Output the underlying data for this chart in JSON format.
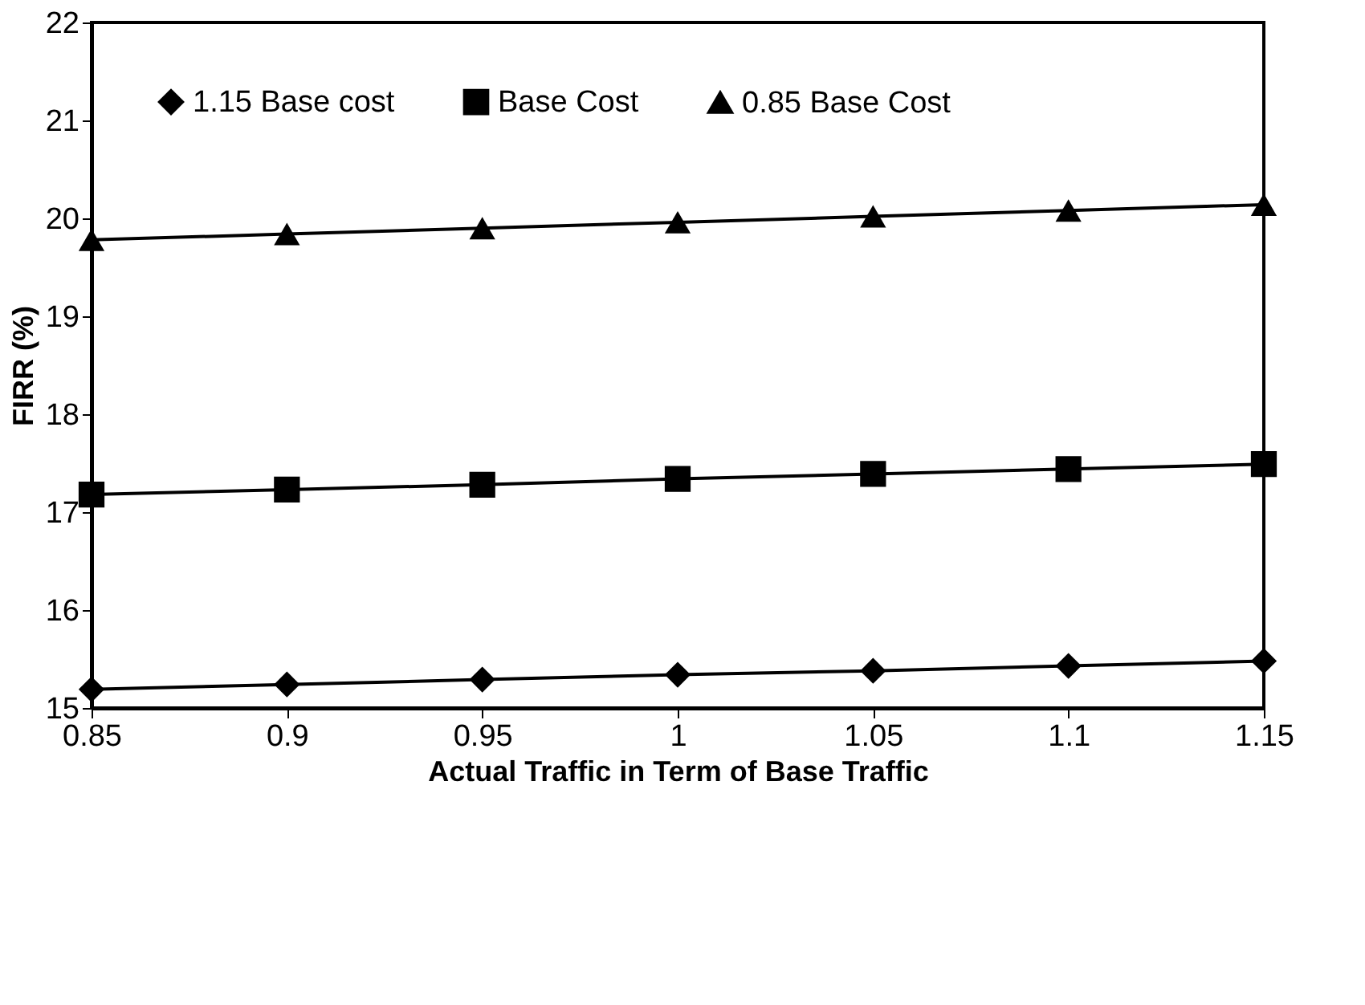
{
  "chart_data": {
    "type": "line",
    "xlabel": "Actual Traffic in Term of Base Traffic",
    "ylabel": "FIRR (%)",
    "x": [
      0.85,
      0.9,
      0.95,
      1,
      1.05,
      1.1,
      1.15
    ],
    "series": [
      {
        "name": "1.15 Base cost",
        "color": "#000000",
        "marker": "diamond",
        "values": [
          15.19,
          15.24,
          15.29,
          15.34,
          15.38,
          15.43,
          15.48
        ]
      },
      {
        "name": "Base Cost",
        "color": "#000000",
        "marker": "square",
        "values": [
          17.18,
          17.23,
          17.28,
          17.34,
          17.39,
          17.44,
          17.49
        ]
      },
      {
        "name": "0.85 Base Cost",
        "color": "#000000",
        "marker": "triangle",
        "values": [
          19.78,
          19.84,
          19.9,
          19.96,
          20.02,
          20.08,
          20.14
        ]
      }
    ],
    "xlim": [
      0.85,
      1.15
    ],
    "xticks": [
      0.85,
      0.9,
      0.95,
      1,
      1.05,
      1.1,
      1.15
    ],
    "ylim": [
      15,
      22
    ],
    "yticks": [
      15,
      16,
      17,
      18,
      19,
      20,
      21,
      22
    ],
    "grid": false,
    "legend": "top",
    "line_style": "solid"
  }
}
